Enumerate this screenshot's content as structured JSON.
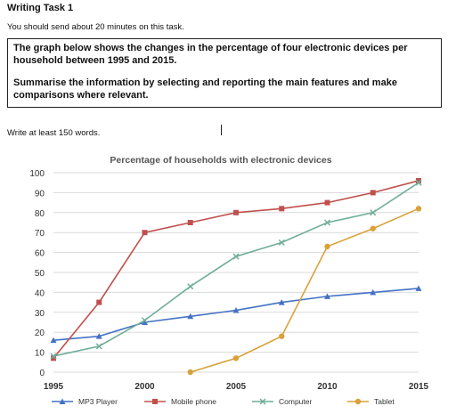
{
  "task": {
    "title": "Writing Task 1",
    "intro": "You should send about 20 minutes on this task.",
    "prompt_lines": [
      "The graph below shows the changes in the percentage of four electronic devices per",
      "household between 1995 and 2015.",
      "",
      "Summarise the information by selecting and reporting the main features and make",
      "comparisons where relevant."
    ],
    "word_count": "Write at least 150 words."
  },
  "chart_data": {
    "type": "line",
    "title": "Percentage of households with electronic devices",
    "xlabel": "",
    "ylabel": "",
    "x": [
      1995,
      1997.5,
      2000,
      2002.5,
      2005,
      2007.5,
      2010,
      2012.5,
      2015
    ],
    "xticks": [
      1995,
      2000,
      2005,
      2010,
      2015
    ],
    "yticks": [
      0,
      10,
      20,
      30,
      40,
      50,
      60,
      70,
      80,
      90,
      100
    ],
    "ylim": [
      0,
      100
    ],
    "xlim": [
      1995,
      2015
    ],
    "grid": true,
    "legend_position": "bottom",
    "series": [
      {
        "name": "MP3 Player",
        "color": "#4472c4",
        "marker": "triangle",
        "values": [
          16,
          18,
          25,
          28,
          31,
          35,
          38,
          40,
          42
        ]
      },
      {
        "name": "Mobile phone",
        "color": "#c0504d",
        "marker": "square",
        "values": [
          7,
          35,
          70,
          75,
          80,
          82,
          85,
          90,
          96
        ]
      },
      {
        "name": "Computer",
        "color": "#70ad9a",
        "marker": "cross",
        "values": [
          8,
          13,
          26,
          43,
          58,
          65,
          75,
          80,
          95
        ]
      },
      {
        "name": "Tablet",
        "color": "#d9a13a",
        "marker": "circle",
        "values": [
          null,
          null,
          null,
          0,
          7,
          18,
          63,
          72,
          82
        ]
      }
    ]
  }
}
